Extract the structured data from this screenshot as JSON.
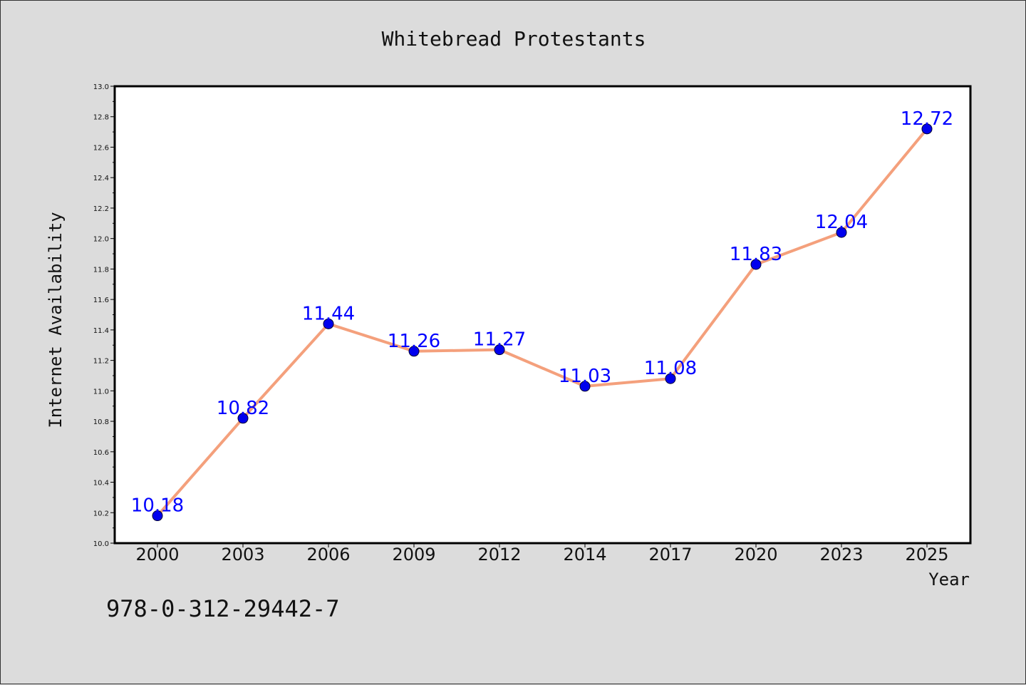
{
  "colors": {
    "background": "#dcdcdc",
    "plot_background": "#ffffff",
    "line": "#f4a07c",
    "marker": "#0000ee",
    "data_label": "#0000ff"
  },
  "footnote": "978-0-312-29442-7",
  "chart_data": {
    "type": "line",
    "title": "Whitebread Protestants",
    "xlabel": "Year",
    "ylabel": "Internet Availability",
    "categories": [
      "2000",
      "2003",
      "2006",
      "2009",
      "2012",
      "2014",
      "2017",
      "2020",
      "2023",
      "2025"
    ],
    "series": [
      {
        "values": [
          10.18,
          10.82,
          11.44,
          11.26,
          11.27,
          11.03,
          11.08,
          11.83,
          12.04,
          12.72
        ],
        "labels": [
          "10.18",
          "10.82",
          "11.44",
          "11.26",
          "11.27",
          "11.03",
          "11.08",
          "11.83",
          "12.04",
          "12.72"
        ]
      }
    ],
    "ylim": [
      10.0,
      13.0
    ],
    "yticks": [
      "10.0",
      "10.2",
      "10.4",
      "10.6",
      "10.8",
      "11.0",
      "11.2",
      "11.4",
      "11.6",
      "11.8",
      "12.0",
      "12.2",
      "12.4",
      "12.6",
      "12.8",
      "13.0"
    ],
    "grid": false,
    "legend": "none"
  }
}
